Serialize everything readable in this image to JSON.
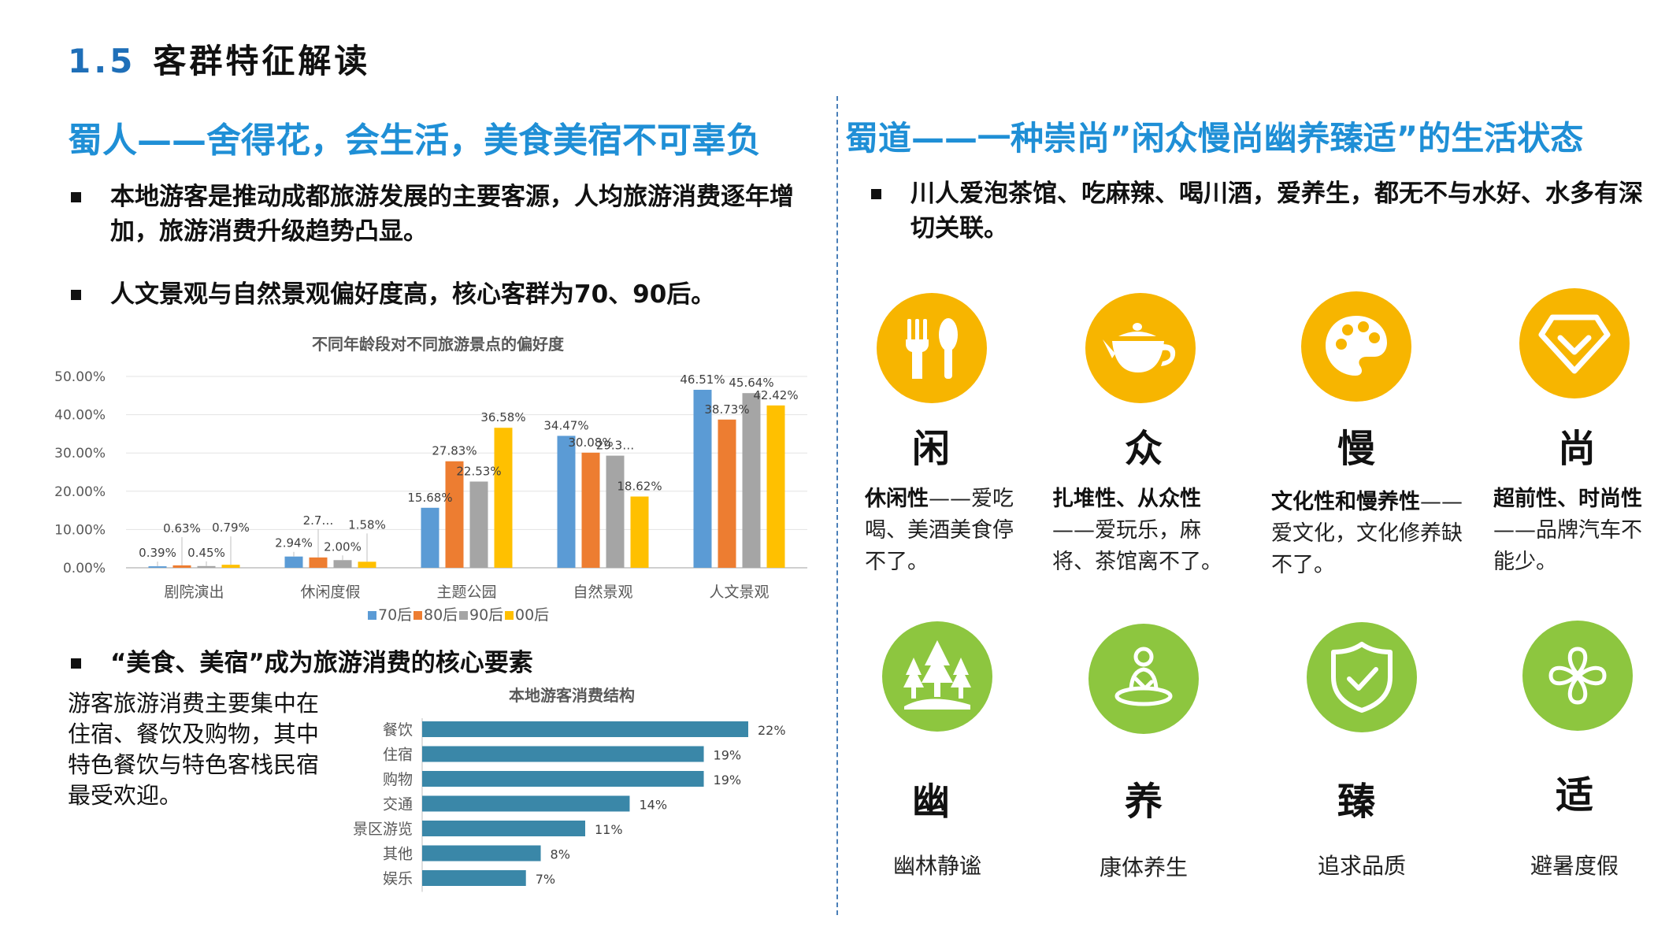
{
  "header": {
    "number": "1.5",
    "title": "客群特征解读"
  },
  "left": {
    "headline": "蜀人——舍得花，会生活，美食美宿不可辜负",
    "bullets": [
      "本地游客是推动成都旅游发展的主要客源，人均旅游消费逐年增加，旅游消费升级趋势凸显。",
      "人文景观与自然景观偏好度高，核心客群为70、90后。",
      "“美食、美宿”成为旅游消费的核心要素"
    ],
    "paragraph": "游客旅游消费主要集中在住宿、餐饮及购物，其中特色餐饮与特色客栈民宿最受欢迎。"
  },
  "right": {
    "headline": "蜀道——一种崇尚”闲众慢尚幽养臻适”的生活状态",
    "bullet": "川人爱泡茶馆、吃麻辣、喝川酒，爱养生，都无不与水好、水多有深切关联。",
    "top_items": [
      {
        "char": "闲",
        "icon": "fork-spoon-icon",
        "bold": "休闲性",
        "rest": "——爱吃喝、美酒美食停不了。"
      },
      {
        "char": "众",
        "icon": "teapot-icon",
        "bold": "扎堆性、从众性",
        "rest": "——爱玩乐，麻将、茶馆离不了。"
      },
      {
        "char": "慢",
        "icon": "palette-icon",
        "bold": "文化性和慢养性",
        "rest": "——爱文化，文化修养缺不了。"
      },
      {
        "char": "尚",
        "icon": "diamond-icon",
        "bold": "超前性、时尚性",
        "rest": "——品牌汽车不能少。"
      }
    ],
    "bottom_items": [
      {
        "char": "幽",
        "icon": "forest-icon",
        "caption": "幽林静谧"
      },
      {
        "char": "养",
        "icon": "meditation-icon",
        "caption": "康体养生"
      },
      {
        "char": "臻",
        "icon": "shield-check-icon",
        "caption": "追求品质"
      },
      {
        "char": "适",
        "icon": "clover-icon",
        "caption": "避暑度假"
      }
    ]
  },
  "colors": {
    "accent": "#1f8fd6",
    "yellow_icon": "#f7b500",
    "green_icon": "#8dc63f",
    "bar_teal": "#3a87a8"
  },
  "chart_data": [
    {
      "type": "bar",
      "title": "不同年龄段对不同旅游景点的偏好度",
      "categories": [
        "剧院演出",
        "休闲度假",
        "主题公园",
        "自然景观",
        "人文景观"
      ],
      "series": [
        {
          "name": "70后",
          "color": "#5b9bd5",
          "values": [
            0.39,
            2.94,
            15.68,
            34.47,
            46.51
          ],
          "labels": [
            "0.39%",
            "2.94%",
            "15.68%",
            "34.47%",
            "46.51%"
          ]
        },
        {
          "name": "80后",
          "color": "#ed7d31",
          "values": [
            0.63,
            2.7,
            27.83,
            30.08,
            38.73
          ],
          "labels": [
            "0.63%",
            "2.7…",
            "27.83%",
            "30.08%",
            "38.73%"
          ]
        },
        {
          "name": "90后",
          "color": "#a5a5a5",
          "values": [
            0.45,
            2.0,
            22.53,
            29.3,
            45.64
          ],
          "labels": [
            "0.45%",
            "2.00%",
            "22.53%",
            "29.3…",
            "45.64%"
          ]
        },
        {
          "name": "00后",
          "color": "#ffc000",
          "values": [
            0.79,
            1.58,
            36.58,
            18.62,
            42.42
          ],
          "labels": [
            "0.79%",
            "1.58%",
            "36.58%",
            "18.62%",
            "42.42%"
          ]
        }
      ],
      "yticks": [
        "0.00%",
        "10.00%",
        "20.00%",
        "30.00%",
        "40.00%",
        "50.00%"
      ],
      "ylim": [
        0,
        50
      ],
      "legend": "bottom",
      "grid": true
    },
    {
      "type": "bar",
      "orientation": "horizontal",
      "title": "本地游客消费结构",
      "categories": [
        "餐饮",
        "住宿",
        "购物",
        "交通",
        "景区游览",
        "其他",
        "娱乐"
      ],
      "values": [
        22,
        19,
        19,
        14,
        11,
        8,
        7
      ],
      "labels": [
        "22%",
        "19%",
        "19%",
        "14%",
        "11%",
        "8%",
        "7%"
      ],
      "xlim": [
        0,
        22
      ],
      "grid": false
    }
  ]
}
